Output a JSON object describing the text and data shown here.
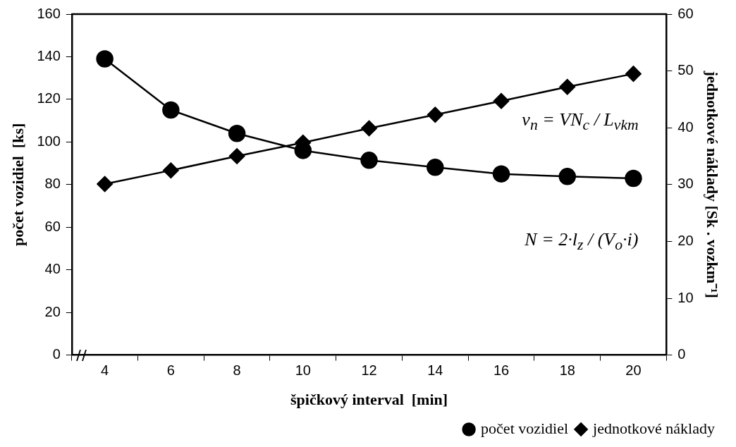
{
  "chart_data": {
    "type": "line",
    "xlabel": "špičkový interval  [min]",
    "ylabel": "počet vozidiel  [ks]",
    "y2label": "jednotkové náklady [Sk . vozkm⁻¹]",
    "categories": [
      "4",
      "6",
      "8",
      "10",
      "12",
      "14",
      "16",
      "18",
      "20"
    ],
    "series": [
      {
        "name": "počet vozidiel",
        "color": "#000000",
        "marker": "circle",
        "values": [
          139,
          115,
          104,
          96,
          91.4,
          88.1,
          85,
          83.8,
          82.9
        ]
      },
      {
        "name": "jednotkové náklady",
        "color": "#000000",
        "marker": "diamond",
        "axis": "y2",
        "values": [
          30.1,
          32.5,
          35,
          37.4,
          39.9,
          42.3,
          44.7,
          47.2,
          49.5
        ]
      }
    ],
    "ylim": [
      0,
      160
    ],
    "yticks": [
      0,
      20,
      40,
      60,
      80,
      100,
      120,
      140,
      160
    ],
    "y2lim": [
      0,
      60
    ],
    "y2ticks": [
      0,
      10,
      20,
      30,
      40,
      50,
      60
    ],
    "annotations": [
      "v$_{n}$ = VN$_{c}$ / L$_{vkm}$",
      "N = 2·l$_{z}$ / (V$_{o}$·i)"
    ],
    "grid": false,
    "legend": "bottom right",
    "line_style": "solid"
  }
}
